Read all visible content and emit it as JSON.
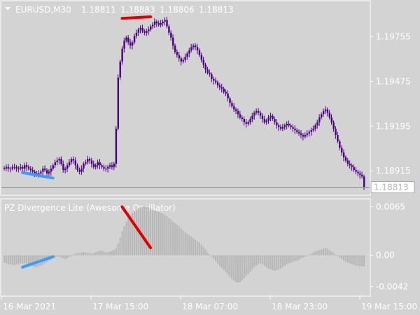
{
  "window": {
    "symbol_label": "EURUSD,M30",
    "ohlc": [
      "1.18811",
      "1.18883",
      "1.18806",
      "1.18813"
    ],
    "current_price_label": "1.18813",
    "indicator_title": "PZ Divergence Lite (Awesome Oscillator)"
  },
  "colors": {
    "background": "#d3d3d3",
    "grid_border": "#ffffff",
    "candle": "#4b0082",
    "bull_divergence": "#3b9cff",
    "bear_divergence": "#e00000",
    "histogram": "#b8b8b8",
    "price_line": "#7f93a8"
  },
  "price_axis": {
    "ticks": [
      {
        "value": 1.19755,
        "label": "1.19755"
      },
      {
        "value": 1.19475,
        "label": "1.19475"
      },
      {
        "value": 1.19195,
        "label": "1.19195"
      },
      {
        "value": 1.18915,
        "label": "1.18915"
      }
    ],
    "current": 1.18813
  },
  "osc_axis": {
    "ticks": [
      {
        "value": 0.0065,
        "label": "0.0065"
      },
      {
        "value": 0.0,
        "label": "0.00"
      },
      {
        "value": -0.0042,
        "label": "-0.0042"
      }
    ]
  },
  "time_axis": {
    "labels": [
      "16 Mar 2021",
      "17 Mar 15:00",
      "18 Mar 07:00",
      "18 Mar 23:00",
      "19 Mar 15:00"
    ]
  },
  "chart_data": {
    "type": "candlestick",
    "price_closes": [
      1.1893,
      1.1894,
      1.1893,
      1.1893,
      1.1894,
      1.1894,
      1.1893,
      1.1893,
      1.1894,
      1.1893,
      1.1895,
      1.1894,
      1.1893,
      1.1892,
      1.1891,
      1.189,
      1.1889,
      1.189,
      1.1891,
      1.1893,
      1.1892,
      1.189,
      1.1891,
      1.1893,
      1.1895,
      1.1897,
      1.1898,
      1.1899,
      1.1896,
      1.1892,
      1.1893,
      1.1895,
      1.1897,
      1.1899,
      1.1898,
      1.1895,
      1.1892,
      1.1891,
      1.1893,
      1.1896,
      1.1897,
      1.1899,
      1.1898,
      1.1896,
      1.1894,
      1.1895,
      1.1897,
      1.1895,
      1.1894,
      1.1893,
      1.1893,
      1.1894,
      1.1895,
      1.1894,
      1.1896,
      1.1918,
      1.195,
      1.196,
      1.1968,
      1.1973,
      1.1975,
      1.1972,
      1.197,
      1.1972,
      1.1976,
      1.1978,
      1.198,
      1.1981,
      1.1979,
      1.1978,
      1.1979,
      1.198,
      1.1982,
      1.1983,
      1.1985,
      1.1984,
      1.1983,
      1.1984,
      1.1985,
      1.1986,
      1.1982,
      1.1978,
      1.1975,
      1.197,
      1.1966,
      1.1964,
      1.1962,
      1.196,
      1.1961,
      1.1963,
      1.1965,
      1.1967,
      1.1969,
      1.197,
      1.1969,
      1.1967,
      1.1964,
      1.1961,
      1.1958,
      1.1955,
      1.1953,
      1.1952,
      1.1949,
      1.1948,
      1.1947,
      1.1945,
      1.1944,
      1.1943,
      1.1941,
      1.194,
      1.1937,
      1.1934,
      1.1932,
      1.193,
      1.1929,
      1.1927,
      1.1925,
      1.1924,
      1.1922,
      1.1921,
      1.1922,
      1.1924,
      1.1926,
      1.1928,
      1.1929,
      1.1928,
      1.1926,
      1.1924,
      1.1922,
      1.1923,
      1.1925,
      1.1926,
      1.1924,
      1.1922,
      1.192,
      1.1919,
      1.1918,
      1.1919,
      1.192,
      1.1921,
      1.192,
      1.1919,
      1.1918,
      1.1917,
      1.1916,
      1.1915,
      1.1914,
      1.1913,
      1.1914,
      1.1915,
      1.1916,
      1.1917,
      1.1918,
      1.192,
      1.1922,
      1.1925,
      1.1927,
      1.1929,
      1.193,
      1.1928,
      1.1925,
      1.1922,
      1.1918,
      1.1914,
      1.191,
      1.1906,
      1.1903,
      1.19,
      1.1898,
      1.1896,
      1.1895,
      1.1894,
      1.1892,
      1.1891,
      1.189,
      1.1889,
      1.1888,
      1.18813
    ],
    "osc_values": [
      -0.001,
      -0.0011,
      -0.0012,
      -0.0012,
      -0.0013,
      -0.0013,
      -0.0012,
      -0.0012,
      -0.0011,
      -0.0011,
      -0.0011,
      -0.0012,
      -0.0013,
      -0.0014,
      -0.0015,
      -0.0016,
      -0.0016,
      -0.0015,
      -0.0014,
      -0.0013,
      -0.0011,
      -0.0009,
      -0.0007,
      -0.0006,
      -0.0004,
      -0.0003,
      -0.0002,
      -0.0002,
      -0.0003,
      -0.0004,
      -0.0005,
      -0.0004,
      -0.0002,
      -0.0001,
      0.0001,
      0.0002,
      0.0003,
      0.0003,
      0.0004,
      0.0004,
      0.0004,
      0.0003,
      0.0003,
      0.0002,
      0.0003,
      0.0004,
      0.0005,
      0.0006,
      0.0006,
      0.0005,
      0.0004,
      0.0004,
      0.0005,
      0.0006,
      0.0007,
      0.001,
      0.0016,
      0.0024,
      0.0032,
      0.0039,
      0.0045,
      0.005,
      0.0054,
      0.0057,
      0.0059,
      0.0061,
      0.0063,
      0.0064,
      0.0065,
      0.0066,
      0.0065,
      0.0064,
      0.0063,
      0.0061,
      0.006,
      0.0059,
      0.0058,
      0.0057,
      0.0056,
      0.0054,
      0.0052,
      0.005,
      0.0048,
      0.0045,
      0.0043,
      0.0041,
      0.0039,
      0.0036,
      0.0033,
      0.0031,
      0.0029,
      0.0027,
      0.0025,
      0.0023,
      0.0021,
      0.0019,
      0.0017,
      0.0014,
      0.0011,
      0.0008,
      0.0004,
      0.0001,
      -0.0002,
      -0.0005,
      -0.0008,
      -0.0011,
      -0.0014,
      -0.0017,
      -0.002,
      -0.0023,
      -0.0026,
      -0.0029,
      -0.0032,
      -0.0034,
      -0.0036,
      -0.0037,
      -0.0036,
      -0.0034,
      -0.0031,
      -0.0028,
      -0.0025,
      -0.0022,
      -0.0019,
      -0.0016,
      -0.0014,
      -0.0012,
      -0.0011,
      -0.0012,
      -0.0014,
      -0.0016,
      -0.0018,
      -0.0019,
      -0.002,
      -0.0021,
      -0.002,
      -0.0019,
      -0.0018,
      -0.0016,
      -0.0014,
      -0.0012,
      -0.0011,
      -0.001,
      -0.0009,
      -0.0008,
      -0.0007,
      -0.0006,
      -0.0004,
      -0.0003,
      -0.0002,
      -0.0001,
      0.0,
      0.0002,
      0.0004,
      0.0005,
      0.0006,
      0.0007,
      0.0008,
      0.0009,
      0.001,
      0.0009,
      0.0007,
      0.0005,
      0.0003,
      0.0001,
      -0.0001,
      -0.0003,
      -0.0005,
      -0.0007,
      -0.0009,
      -0.001,
      -0.0011,
      -0.0012,
      -0.0013,
      -0.0014,
      -0.0014,
      -0.0015,
      -0.0015,
      -0.0015
    ],
    "divergences": [
      {
        "kind": "bullish",
        "panel": "price",
        "from": [
          9,
          1.18905
        ],
        "to": [
          24,
          1.1887
        ]
      },
      {
        "kind": "bearish",
        "panel": "price",
        "from": [
          58,
          1.1987
        ],
        "to": [
          72,
          1.1988
        ]
      },
      {
        "kind": "bullish",
        "panel": "osc",
        "from": [
          9,
          -0.0016
        ],
        "to": [
          24,
          -0.0002
        ]
      },
      {
        "kind": "bearish",
        "panel": "osc",
        "from": [
          58,
          0.0065
        ],
        "to": [
          72,
          0.001
        ]
      }
    ],
    "price_range": [
      1.1878,
      1.1995
    ],
    "osc_range": [
      -0.0052,
      0.0072
    ]
  }
}
